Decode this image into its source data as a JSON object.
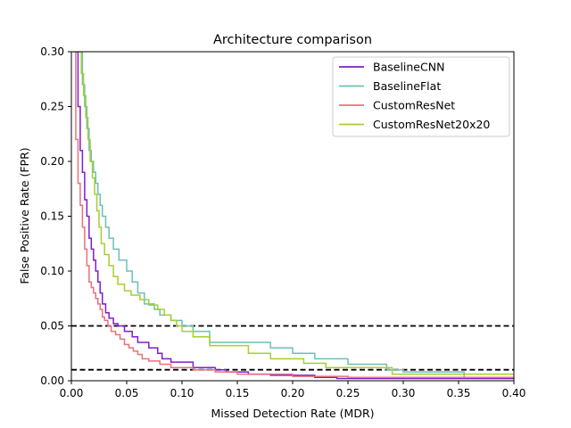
{
  "chart_data": {
    "type": "line",
    "title": "Architecture comparison",
    "xlabel": "Missed Detection Rate (MDR)",
    "ylabel": "False Positive Rate (FPR)",
    "xlim": [
      0.0,
      0.4
    ],
    "ylim": [
      0.0,
      0.3
    ],
    "xticks": [
      "0.00",
      "0.05",
      "0.10",
      "0.15",
      "0.20",
      "0.25",
      "0.30",
      "0.35",
      "0.40"
    ],
    "yticks": [
      "0.00",
      "0.05",
      "0.10",
      "0.15",
      "0.20",
      "0.25",
      "0.30"
    ],
    "grid": false,
    "legend_position": "top-right",
    "reference_lines": [
      {
        "y": 0.05,
        "style": "dashed",
        "color": "#000000"
      },
      {
        "y": 0.01,
        "style": "dashed",
        "color": "#000000"
      }
    ],
    "series": [
      {
        "name": "BaselineCNN",
        "color": "#7e1dd1",
        "x": [
          0.003,
          0.006,
          0.008,
          0.01,
          0.012,
          0.014,
          0.016,
          0.018,
          0.02,
          0.022,
          0.024,
          0.026,
          0.028,
          0.031,
          0.034,
          0.038,
          0.042,
          0.048,
          0.055,
          0.06,
          0.07,
          0.078,
          0.082,
          0.09,
          0.11,
          0.13,
          0.14,
          0.16,
          0.18,
          0.22,
          0.24,
          0.28,
          0.4
        ],
        "y": [
          0.3,
          0.25,
          0.21,
          0.19,
          0.165,
          0.15,
          0.13,
          0.12,
          0.11,
          0.1,
          0.09,
          0.08,
          0.07,
          0.062,
          0.057,
          0.052,
          0.05,
          0.045,
          0.04,
          0.035,
          0.03,
          0.025,
          0.02,
          0.017,
          0.012,
          0.01,
          0.008,
          0.006,
          0.005,
          0.003,
          0.002,
          0.002,
          0.002
        ]
      },
      {
        "name": "BaselineFlat",
        "color": "#6cc0b5",
        "x": [
          0.008,
          0.01,
          0.012,
          0.014,
          0.016,
          0.018,
          0.02,
          0.022,
          0.024,
          0.026,
          0.028,
          0.031,
          0.034,
          0.038,
          0.043,
          0.05,
          0.055,
          0.06,
          0.066,
          0.075,
          0.08,
          0.09,
          0.1,
          0.11,
          0.125,
          0.15,
          0.18,
          0.2,
          0.22,
          0.25,
          0.285,
          0.3,
          0.355,
          0.4
        ],
        "y": [
          0.3,
          0.27,
          0.25,
          0.23,
          0.21,
          0.2,
          0.19,
          0.18,
          0.17,
          0.16,
          0.15,
          0.14,
          0.13,
          0.12,
          0.11,
          0.1,
          0.09,
          0.08,
          0.07,
          0.065,
          0.06,
          0.055,
          0.05,
          0.045,
          0.035,
          0.035,
          0.03,
          0.025,
          0.02,
          0.015,
          0.01,
          0.008,
          0.003,
          0.003
        ]
      },
      {
        "name": "CustomResNet",
        "color": "#ea7079",
        "x": [
          0.002,
          0.004,
          0.006,
          0.008,
          0.01,
          0.012,
          0.014,
          0.016,
          0.018,
          0.02,
          0.022,
          0.024,
          0.026,
          0.028,
          0.03,
          0.033,
          0.036,
          0.04,
          0.044,
          0.048,
          0.052,
          0.056,
          0.06,
          0.064,
          0.07,
          0.08,
          0.09,
          0.11,
          0.13,
          0.15,
          0.2,
          0.25,
          0.4
        ],
        "y": [
          0.3,
          0.22,
          0.18,
          0.16,
          0.14,
          0.12,
          0.105,
          0.09,
          0.085,
          0.08,
          0.075,
          0.07,
          0.065,
          0.058,
          0.055,
          0.05,
          0.045,
          0.042,
          0.038,
          0.033,
          0.03,
          0.027,
          0.024,
          0.02,
          0.018,
          0.015,
          0.012,
          0.01,
          0.008,
          0.006,
          0.004,
          0.003,
          0.003
        ]
      },
      {
        "name": "CustomResNet20x20",
        "color": "#a5cf2e",
        "x": [
          0.007,
          0.009,
          0.011,
          0.013,
          0.015,
          0.017,
          0.019,
          0.021,
          0.023,
          0.025,
          0.027,
          0.03,
          0.034,
          0.038,
          0.042,
          0.048,
          0.054,
          0.062,
          0.07,
          0.078,
          0.084,
          0.09,
          0.095,
          0.1,
          0.11,
          0.125,
          0.15,
          0.16,
          0.18,
          0.2,
          0.21,
          0.23,
          0.25,
          0.285,
          0.29,
          0.4
        ],
        "y": [
          0.3,
          0.28,
          0.26,
          0.24,
          0.22,
          0.2,
          0.185,
          0.17,
          0.155,
          0.14,
          0.125,
          0.115,
          0.105,
          0.095,
          0.088,
          0.082,
          0.078,
          0.074,
          0.069,
          0.065,
          0.06,
          0.055,
          0.05,
          0.045,
          0.04,
          0.032,
          0.032,
          0.025,
          0.02,
          0.02,
          0.016,
          0.012,
          0.012,
          0.012,
          0.006,
          0.006
        ]
      }
    ]
  }
}
